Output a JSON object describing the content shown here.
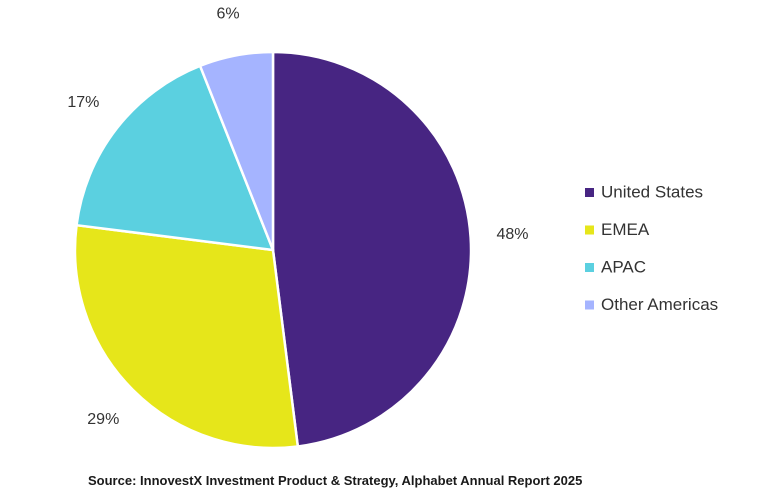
{
  "chart_data": {
    "type": "pie",
    "title": "",
    "categories": [
      "United States",
      "EMEA",
      "APAC",
      "Other Americas"
    ],
    "values": [
      48,
      29,
      17,
      6
    ],
    "labels": [
      "48%",
      "29%",
      "17%",
      "6%"
    ],
    "colors": [
      "#472582",
      "#e6e61a",
      "#5bd0e0",
      "#a5b4ff"
    ],
    "legend_position": "right"
  },
  "source": "Source: InnovestX Investment Product & Strategy, Alphabet Annual Report 2025"
}
